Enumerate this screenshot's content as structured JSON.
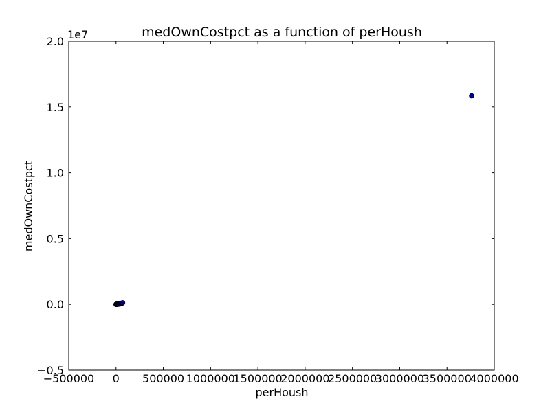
{
  "chart_data": {
    "type": "scatter",
    "title": "medOwnCostpct as a function of perHoush",
    "xlabel": "perHoush",
    "ylabel": "medOwnCostpct",
    "xlim": [
      -500000,
      4000000
    ],
    "ylim": [
      -0.5,
      2.0
    ],
    "y_offset_label": "1e7",
    "x_ticks": [
      -500000,
      0,
      500000,
      1000000,
      1500000,
      2000000,
      2500000,
      3000000,
      3500000,
      4000000
    ],
    "x_tick_labels": [
      "−500000",
      "0",
      "500000",
      "1000000",
      "1500000",
      "2000000",
      "2500000",
      "3000000",
      "3500000",
      "4000000"
    ],
    "y_ticks": [
      -0.5,
      0.0,
      0.5,
      1.0,
      1.5,
      2.0
    ],
    "y_tick_labels": [
      "−0.5",
      "0.0",
      "0.5",
      "1.0",
      "1.5",
      "2.0"
    ],
    "grid": false,
    "marker_color": "#00008b",
    "points": [
      {
        "x": 0,
        "y": 0.0
      },
      {
        "x": 2000,
        "y": 0.0005
      },
      {
        "x": 5000,
        "y": 0.001
      },
      {
        "x": 8000,
        "y": 0.0015
      },
      {
        "x": 12000,
        "y": 0.002
      },
      {
        "x": 15000,
        "y": 0.0
      },
      {
        "x": 20000,
        "y": 0.003
      },
      {
        "x": 25000,
        "y": 0.004
      },
      {
        "x": 30000,
        "y": 0.002
      },
      {
        "x": 35000,
        "y": 0.005
      },
      {
        "x": 40000,
        "y": 0.006
      },
      {
        "x": 45000,
        "y": 0.004
      },
      {
        "x": 50000,
        "y": 0.007
      },
      {
        "x": 55000,
        "y": 0.008
      },
      {
        "x": 60000,
        "y": 0.009
      },
      {
        "x": 65000,
        "y": 0.01
      },
      {
        "x": 70000,
        "y": 0.012
      },
      {
        "x": 3760000,
        "y": 1.585
      }
    ]
  }
}
